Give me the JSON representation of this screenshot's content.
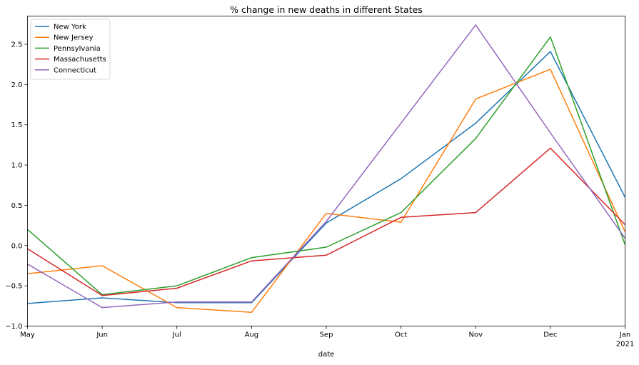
{
  "chart_data": {
    "type": "line",
    "title": "% change in new deaths in different States",
    "xlabel": "date",
    "ylabel": "",
    "x": [
      "2020-05",
      "2020-06",
      "2020-07",
      "2020-08",
      "2020-09",
      "2020-10",
      "2020-11",
      "2020-12",
      "2021-01"
    ],
    "x_tick_labels": [
      "May",
      "Jun",
      "Jul",
      "Aug",
      "Sep",
      "Oct",
      "Nov",
      "Dec",
      "Jan"
    ],
    "x_tick_sublabels": [
      "",
      "",
      "",
      "",
      "",
      "",
      "",
      "",
      "2021"
    ],
    "y_ticks": [
      "−1.0",
      "−0.5",
      "0.0",
      "0.5",
      "1.0",
      "1.5",
      "2.0",
      "2.5"
    ],
    "ylim": [
      -1.0,
      2.85
    ],
    "grid": false,
    "legend_position": "top-left",
    "series": [
      {
        "name": "New York",
        "color": "#1f77b4",
        "values": [
          -0.72,
          -0.65,
          -0.71,
          -0.71,
          0.28,
          0.83,
          1.52,
          2.41,
          0.6
        ]
      },
      {
        "name": "New Jersey",
        "color": "#ff7f0e",
        "values": [
          -0.35,
          -0.25,
          -0.77,
          -0.83,
          0.4,
          0.29,
          1.82,
          2.19,
          0.17
        ]
      },
      {
        "name": "Pennsylvania",
        "color": "#2ca02c",
        "values": [
          0.2,
          -0.61,
          -0.5,
          -0.15,
          -0.02,
          0.41,
          1.33,
          2.59,
          0.01
        ]
      },
      {
        "name": "Massachusetts",
        "color": "#d62728",
        "values": [
          -0.04,
          -0.62,
          -0.53,
          -0.19,
          -0.12,
          0.35,
          0.41,
          1.21,
          0.26
        ]
      },
      {
        "name": "Connecticut",
        "color": "#9467bd",
        "values": [
          -0.23,
          -0.77,
          -0.7,
          -0.7,
          0.3,
          1.52,
          2.74,
          1.4,
          0.09
        ]
      }
    ]
  }
}
